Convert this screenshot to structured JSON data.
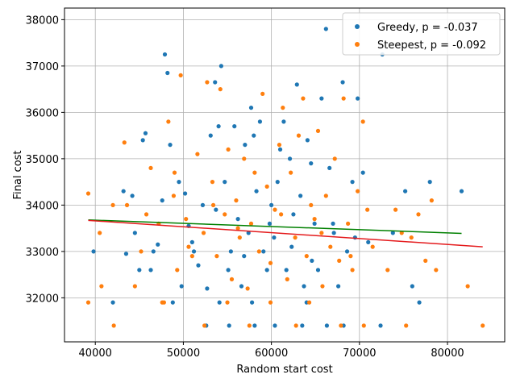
{
  "chart_data": {
    "type": "scatter",
    "xlabel": "Random start cost",
    "ylabel": "Final cost",
    "xlim": [
      36500,
      86500
    ],
    "ylim": [
      31050,
      38250
    ],
    "xticks": [
      40000,
      50000,
      60000,
      70000,
      80000
    ],
    "xtick_labels": [
      "40000",
      "50000",
      "60000",
      "70000",
      "80000"
    ],
    "yticks": [
      32000,
      33000,
      34000,
      35000,
      36000,
      37000,
      38000
    ],
    "ytick_labels": [
      "32000",
      "33000",
      "34000",
      "35000",
      "36000",
      "37000",
      "38000"
    ],
    "grid": true,
    "legend_position": "top-right",
    "series": [
      {
        "name": "Greedy, p = -0.037",
        "color": "#1f77b4",
        "points": [
          [
            39800,
            33000
          ],
          [
            42000,
            31900
          ],
          [
            43200,
            34300
          ],
          [
            43500,
            32950
          ],
          [
            44200,
            34200
          ],
          [
            45000,
            32600
          ],
          [
            45400,
            35400
          ],
          [
            45700,
            35550
          ],
          [
            46300,
            32600
          ],
          [
            47100,
            33150
          ],
          [
            47600,
            34100
          ],
          [
            47900,
            37250
          ],
          [
            48200,
            36850
          ],
          [
            48500,
            35300
          ],
          [
            49500,
            34500
          ],
          [
            49800,
            32250
          ],
          [
            50200,
            34250
          ],
          [
            50600,
            33550
          ],
          [
            51200,
            33000
          ],
          [
            51700,
            32700
          ],
          [
            52200,
            34000
          ],
          [
            52700,
            32200
          ],
          [
            53100,
            35500
          ],
          [
            53600,
            36650
          ],
          [
            54000,
            35700
          ],
          [
            54300,
            37000
          ],
          [
            54700,
            34500
          ],
          [
            55100,
            32600
          ],
          [
            55400,
            33000
          ],
          [
            55800,
            35700
          ],
          [
            56200,
            33700
          ],
          [
            56600,
            32250
          ],
          [
            57000,
            35300
          ],
          [
            57400,
            33400
          ],
          [
            57700,
            36100
          ],
          [
            58000,
            35500
          ],
          [
            58300,
            34300
          ],
          [
            58700,
            35800
          ],
          [
            59100,
            33000
          ],
          [
            59500,
            32600
          ],
          [
            60000,
            34000
          ],
          [
            60300,
            33300
          ],
          [
            60700,
            34500
          ],
          [
            61000,
            35200
          ],
          [
            61400,
            35800
          ],
          [
            61700,
            32600
          ],
          [
            62100,
            35000
          ],
          [
            62500,
            33800
          ],
          [
            62900,
            36600
          ],
          [
            63300,
            34200
          ],
          [
            63700,
            32250
          ],
          [
            64100,
            35400
          ],
          [
            64500,
            34900
          ],
          [
            64900,
            33600
          ],
          [
            65300,
            32600
          ],
          [
            65700,
            36300
          ],
          [
            66200,
            37800
          ],
          [
            66600,
            34800
          ],
          [
            67100,
            33400
          ],
          [
            67600,
            32250
          ],
          [
            68100,
            36650
          ],
          [
            68600,
            33000
          ],
          [
            69200,
            34500
          ],
          [
            69800,
            36300
          ],
          [
            70400,
            34700
          ],
          [
            71000,
            33200
          ],
          [
            72600,
            37250
          ],
          [
            73800,
            33400
          ],
          [
            75200,
            34300
          ],
          [
            76000,
            32250
          ],
          [
            76800,
            31900
          ],
          [
            78000,
            34500
          ],
          [
            81600,
            34300
          ],
          [
            52600,
            31400
          ],
          [
            58100,
            31400
          ],
          [
            63500,
            31400
          ],
          [
            68200,
            31400
          ],
          [
            55200,
            31400
          ],
          [
            60400,
            31400
          ],
          [
            66300,
            31400
          ],
          [
            72400,
            31400
          ],
          [
            48800,
            31900
          ],
          [
            54100,
            31900
          ],
          [
            57800,
            31900
          ],
          [
            64000,
            31900
          ],
          [
            51000,
            33200
          ],
          [
            53700,
            33900
          ],
          [
            56900,
            32900
          ],
          [
            59800,
            33600
          ],
          [
            62300,
            33100
          ],
          [
            64600,
            32800
          ],
          [
            67000,
            33600
          ],
          [
            69500,
            33300
          ],
          [
            46600,
            33000
          ],
          [
            44500,
            33400
          ]
        ]
      },
      {
        "name": "Steepest, p = -0.092",
        "color": "#ff7f0e",
        "points": [
          [
            39200,
            34250
          ],
          [
            39200,
            31900
          ],
          [
            40500,
            33400
          ],
          [
            40700,
            32250
          ],
          [
            42000,
            34000
          ],
          [
            42100,
            31400
          ],
          [
            43300,
            35350
          ],
          [
            43600,
            34000
          ],
          [
            44500,
            32250
          ],
          [
            45200,
            33000
          ],
          [
            45800,
            33800
          ],
          [
            46300,
            34800
          ],
          [
            47200,
            33600
          ],
          [
            47600,
            31900
          ],
          [
            48300,
            35800
          ],
          [
            48900,
            34200
          ],
          [
            49300,
            32600
          ],
          [
            49700,
            36800
          ],
          [
            50300,
            33700
          ],
          [
            51000,
            32900
          ],
          [
            51600,
            35100
          ],
          [
            52300,
            33400
          ],
          [
            52700,
            36650
          ],
          [
            53300,
            34500
          ],
          [
            53800,
            32900
          ],
          [
            54200,
            36500
          ],
          [
            54700,
            33800
          ],
          [
            55100,
            35200
          ],
          [
            55500,
            32400
          ],
          [
            56000,
            34100
          ],
          [
            56400,
            33300
          ],
          [
            56900,
            35000
          ],
          [
            57300,
            32200
          ],
          [
            57700,
            33600
          ],
          [
            58100,
            34700
          ],
          [
            58600,
            33000
          ],
          [
            59000,
            36400
          ],
          [
            59500,
            34400
          ],
          [
            59900,
            32750
          ],
          [
            60400,
            33900
          ],
          [
            60900,
            35300
          ],
          [
            61300,
            36100
          ],
          [
            61800,
            32400
          ],
          [
            62200,
            34700
          ],
          [
            62700,
            33300
          ],
          [
            63100,
            35500
          ],
          [
            63600,
            36300
          ],
          [
            64000,
            32900
          ],
          [
            64500,
            34000
          ],
          [
            64900,
            33700
          ],
          [
            65300,
            35600
          ],
          [
            65800,
            32250
          ],
          [
            66200,
            34200
          ],
          [
            66700,
            33100
          ],
          [
            67200,
            35000
          ],
          [
            67700,
            32800
          ],
          [
            68200,
            36300
          ],
          [
            68700,
            33600
          ],
          [
            69200,
            32600
          ],
          [
            69800,
            34300
          ],
          [
            70400,
            35800
          ],
          [
            70900,
            33900
          ],
          [
            71500,
            33100
          ],
          [
            73200,
            32600
          ],
          [
            74100,
            33900
          ],
          [
            74800,
            33400
          ],
          [
            75300,
            31400
          ],
          [
            75900,
            33300
          ],
          [
            76700,
            33800
          ],
          [
            77500,
            32800
          ],
          [
            78200,
            34100
          ],
          [
            78700,
            32600
          ],
          [
            82300,
            32250
          ],
          [
            84000,
            31400
          ],
          [
            52400,
            31400
          ],
          [
            57500,
            31400
          ],
          [
            62800,
            31400
          ],
          [
            67900,
            31400
          ],
          [
            70500,
            31400
          ],
          [
            55000,
            31900
          ],
          [
            59900,
            31900
          ],
          [
            64300,
            31900
          ],
          [
            47800,
            31900
          ],
          [
            50600,
            33100
          ],
          [
            53400,
            34000
          ],
          [
            56200,
            33500
          ],
          [
            61100,
            33800
          ],
          [
            65700,
            33400
          ],
          [
            69000,
            32900
          ],
          [
            49000,
            34700
          ]
        ]
      }
    ],
    "trend_lines": [
      {
        "series": "Greedy, p = -0.037",
        "color": "#008000",
        "x": [
          39200,
          81600
        ],
        "y": [
          33680,
          33390
        ]
      },
      {
        "series": "Steepest, p = -0.092",
        "color": "#e41a1c",
        "x": [
          39200,
          84000
        ],
        "y": [
          33670,
          33100
        ]
      }
    ]
  }
}
